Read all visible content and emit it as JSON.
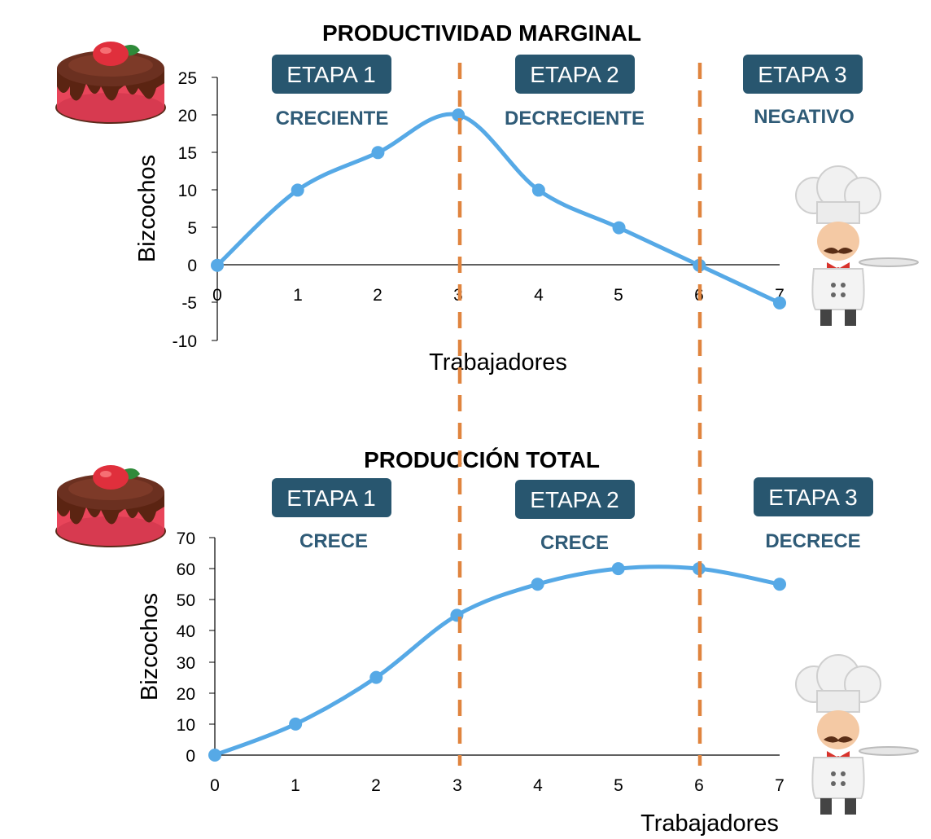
{
  "colors": {
    "line": "#56a9e6",
    "divider": "#e0843e",
    "badge": "#28566f",
    "badge_text": "#ffffff",
    "desc_text": "#2f5b77",
    "axis": "#000000"
  },
  "chart_data": [
    {
      "type": "line",
      "title": "PRODUCTIVIDAD MARGINAL",
      "xlabel": "Trabajadores",
      "ylabel": "Bizcochos",
      "x": [
        0,
        1,
        2,
        3,
        4,
        5,
        6,
        7
      ],
      "y": [
        0,
        10,
        15,
        20,
        10,
        5,
        0,
        -5
      ],
      "xlim": [
        0,
        7
      ],
      "ylim": [
        -10,
        25
      ],
      "x_ticks": [
        "0",
        "1",
        "2",
        "3",
        "4",
        "5",
        "6",
        "7"
      ],
      "y_ticks": [
        "25",
        "20",
        "15",
        "10",
        "5",
        "0",
        "-5",
        "-10"
      ],
      "stage_dividers_x": [
        3,
        6
      ],
      "stages": [
        {
          "label": "ETAPA 1",
          "desc": "CRECIENTE"
        },
        {
          "label": "ETAPA 2",
          "desc": "DECRECIENTE"
        },
        {
          "label": "ETAPA 3",
          "desc": "NEGATIVO"
        }
      ],
      "grid": false,
      "legend": "none"
    },
    {
      "type": "line",
      "title": "PRODUCCIÓN TOTAL",
      "xlabel": "Trabajadores",
      "ylabel": "Bizcochos",
      "x": [
        0,
        1,
        2,
        3,
        4,
        5,
        6,
        7
      ],
      "y": [
        0,
        10,
        25,
        45,
        55,
        60,
        60,
        55
      ],
      "xlim": [
        0,
        7
      ],
      "ylim": [
        0,
        70
      ],
      "x_ticks": [
        "0",
        "1",
        "2",
        "3",
        "4",
        "5",
        "6",
        "7"
      ],
      "y_ticks": [
        "70",
        "60",
        "50",
        "40",
        "30",
        "20",
        "10",
        "0"
      ],
      "stage_dividers_x": [
        3,
        6
      ],
      "stages": [
        {
          "label": "ETAPA 1",
          "desc": "CRECE"
        },
        {
          "label": "ETAPA 2",
          "desc": "CRECE"
        },
        {
          "label": "ETAPA 3",
          "desc": "DECRECE"
        }
      ],
      "grid": false,
      "legend": "none"
    }
  ],
  "icons": [
    "cake-icon",
    "chef-icon"
  ]
}
